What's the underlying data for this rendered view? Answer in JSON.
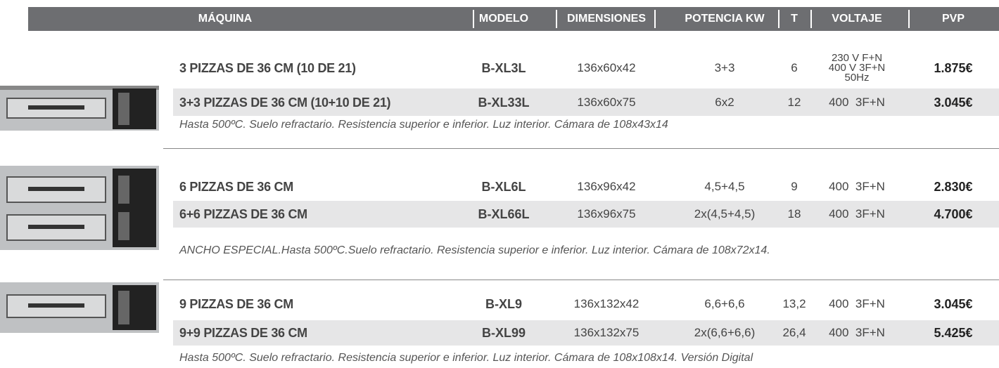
{
  "header": [
    "MÁQUINA",
    "MODELO",
    "DIMENSIONES",
    "POTENCIA KW",
    "T",
    "VOLTAJE",
    "PVP"
  ],
  "groups": [
    {
      "rows": [
        {
          "machine": "3 PIZZAS DE 36 CM (10 DE 21)",
          "model": "B-XL3L",
          "dimensions": "136x60x42",
          "power": "3+3",
          "t": "6",
          "voltage": [
            "230 V F+N",
            "400 V 3F+N",
            "50Hz"
          ],
          "price": "1.875€"
        },
        {
          "machine": "3+3 PIZZAS DE 36 CM (10+10 DE 21)",
          "model": "B-XL33L",
          "dimensions": "136x60x75",
          "power": "6x2",
          "t": "12",
          "voltage": [
            "400  3F+N"
          ],
          "price": "3.045€"
        }
      ],
      "note": "Hasta 500ºC. Suelo refractario. Resistencia superior e inferior. Luz interior. Cámara de 108x43x14"
    },
    {
      "rows": [
        {
          "machine": "6 PIZZAS DE 36 CM",
          "model": "B-XL6L",
          "dimensions": "136x96x42",
          "power": "4,5+4,5",
          "t": "9",
          "voltage": [
            "400  3F+N"
          ],
          "price": "2.830€"
        },
        {
          "machine": "6+6 PIZZAS DE 36 CM",
          "model": "B-XL66L",
          "dimensions": "136x96x75",
          "power": "2x(4,5+4,5)",
          "t": "18",
          "voltage": [
            "400  3F+N"
          ],
          "price": "4.700€"
        }
      ],
      "note": "ANCHO ESPECIAL.Hasta 500ºC.Suelo refractario. Resistencia superior e inferior. Luz interior. Cámara de 108x72x14."
    },
    {
      "rows": [
        {
          "machine": "9 PIZZAS DE 36 CM",
          "model": "B-XL9",
          "dimensions": "136x132x42",
          "power": "6,6+6,6",
          "t": "13,2",
          "voltage": [
            "400  3F+N"
          ],
          "price": "3.045€"
        },
        {
          "machine": "9+9 PIZZAS DE 36 CM",
          "model": "B-XL99",
          "dimensions": "136x132x75",
          "power": "2x(6,6+6,6)",
          "t": "26,4",
          "voltage": [
            "400  3F+N"
          ],
          "price": "5.425€"
        }
      ],
      "note": "Hasta 500ºC. Suelo refractario. Resistencia superior e inferior. Luz interior. Cámara de 108x108x14. Versión Digital"
    }
  ]
}
